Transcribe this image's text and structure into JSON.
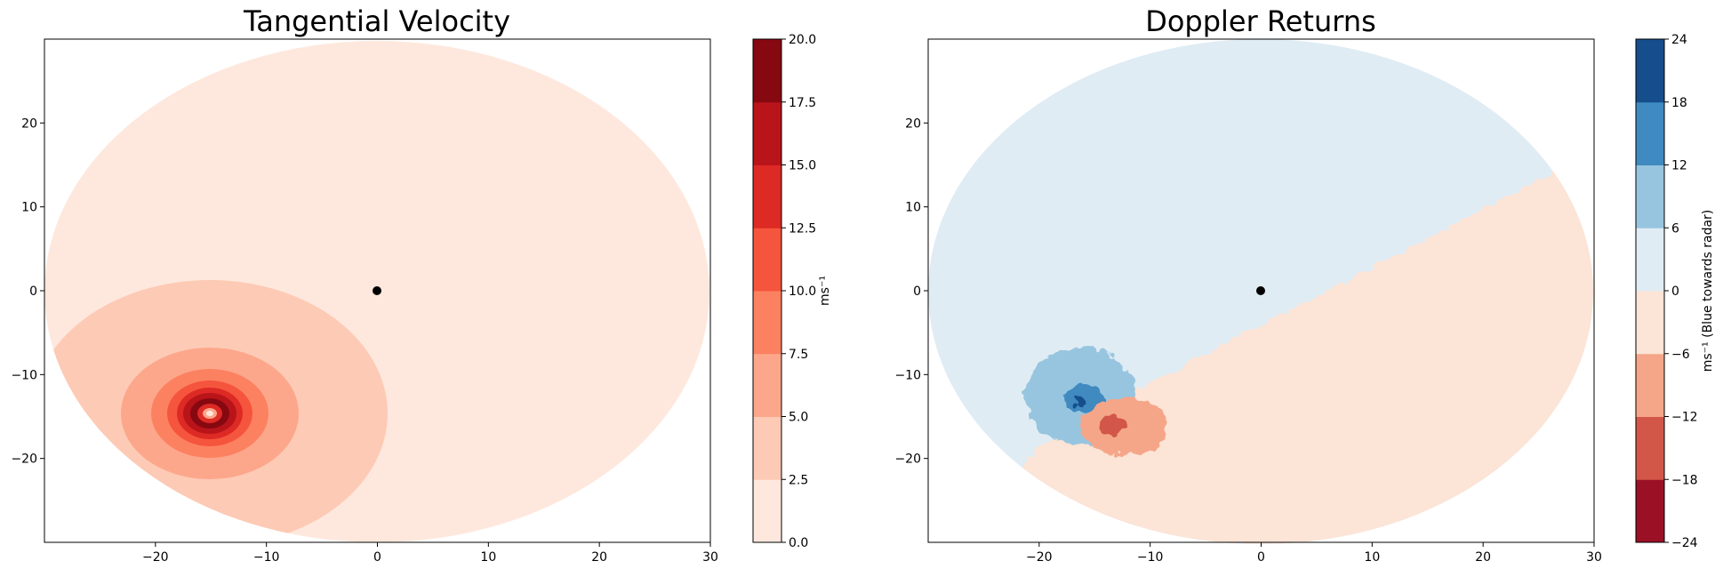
{
  "chart_data": [
    {
      "type": "contour",
      "title": "Tangential Velocity",
      "xlabel": "",
      "ylabel": "",
      "xlim": [
        -30,
        30
      ],
      "ylim": [
        -30,
        30
      ],
      "xticks": [
        -20,
        -10,
        0,
        10,
        20,
        30
      ],
      "yticks": [
        -20,
        -10,
        0,
        10,
        20
      ],
      "radar_location": [
        0,
        0
      ],
      "vortex_center": [
        -15,
        -15
      ],
      "colorbar": {
        "label": "ms⁻¹",
        "levels": [
          0.0,
          2.5,
          5.0,
          7.5,
          10.0,
          12.5,
          15.0,
          17.5,
          20.0
        ],
        "tick_labels": [
          "0.0",
          "2.5",
          "5.0",
          "7.5",
          "10.0",
          "12.5",
          "15.0",
          "17.5",
          "20.0"
        ],
        "colors": [
          "#fee8dd",
          "#fdcab5",
          "#fca78b",
          "#fc8161",
          "#f5553c",
          "#dd2a25",
          "#b91419",
          "#860811"
        ]
      }
    },
    {
      "type": "contour",
      "title": "Doppler Returns",
      "xlabel": "",
      "ylabel": "",
      "xlim": [
        -30,
        30
      ],
      "ylim": [
        -30,
        30
      ],
      "xticks": [
        -20,
        -10,
        0,
        10,
        20,
        30
      ],
      "yticks": [
        -20,
        -10,
        0,
        10,
        20
      ],
      "radar_location": [
        0,
        0
      ],
      "colorbar": {
        "label": "ms⁻¹ (Blue towards radar)",
        "levels": [
          -24,
          -18,
          -12,
          -6,
          0,
          6,
          12,
          18,
          24
        ],
        "tick_labels": [
          "−24",
          "−18",
          "−12",
          "−6",
          "0",
          "6",
          "12",
          "18",
          "24"
        ],
        "colors": [
          "#9a1126",
          "#d25749",
          "#f5a688",
          "#fce4d6",
          "#e0ecf4",
          "#97c5df",
          "#3f8ac0",
          "#154e8b"
        ]
      }
    }
  ]
}
